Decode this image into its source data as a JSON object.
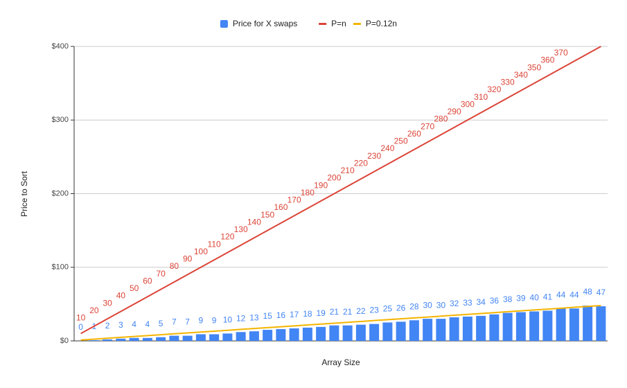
{
  "chart_data": {
    "type": "combo",
    "x_label": "Array Size",
    "y_label": "Price to Sort",
    "categories": [
      null,
      null,
      null,
      null,
      null,
      null,
      null,
      null,
      null,
      null,
      null,
      null,
      null,
      null,
      null,
      null,
      null,
      null,
      null,
      null,
      null,
      null,
      null,
      null,
      null,
      null,
      null,
      null,
      null,
      null,
      null,
      null,
      null,
      null,
      null,
      null,
      null,
      null,
      null,
      null
    ],
    "series": [
      {
        "name": "Price for X swaps",
        "kind": "bar",
        "color": "#4285f4",
        "values": [
          0,
          1,
          2,
          3,
          4,
          4,
          5,
          7,
          7,
          9,
          9,
          10,
          12,
          13,
          15,
          16,
          17,
          18,
          19,
          21,
          21,
          22,
          23,
          25,
          26,
          28,
          30,
          30,
          32,
          33,
          34,
          36,
          38,
          39,
          40,
          41,
          44,
          44,
          48,
          47
        ]
      },
      {
        "name": "P=n",
        "kind": "line",
        "color": "#db4437",
        "values": [
          10,
          20,
          30,
          40,
          50,
          60,
          70,
          80,
          90,
          100,
          110,
          120,
          130,
          140,
          150,
          160,
          170,
          180,
          190,
          200,
          210,
          220,
          230,
          240,
          250,
          260,
          270,
          280,
          290,
          300,
          310,
          320,
          330,
          340,
          350,
          360,
          370,
          380,
          390,
          400
        ],
        "value_labels": [
          "10",
          "20",
          "30",
          "40",
          "50",
          "60",
          "70",
          "80",
          "90",
          "100",
          "110",
          "120",
          "130",
          "140",
          "150",
          "160",
          "170",
          "180",
          "190",
          "200",
          "210",
          "220",
          "230",
          "240",
          "250",
          "260",
          "270",
          "280",
          "290",
          "300",
          "310",
          "320",
          "330",
          "340",
          "350",
          "360",
          "370",
          null,
          null,
          null
        ]
      },
      {
        "name": "P=0.12n",
        "kind": "line",
        "color": "#f4b400",
        "values": [
          1.2,
          2.4,
          3.6,
          4.8,
          6,
          7.2,
          8.4,
          9.6,
          10.8,
          12,
          13.2,
          14.4,
          15.6,
          16.8,
          18,
          19.2,
          20.4,
          21.6,
          22.8,
          24,
          25.2,
          26.4,
          27.6,
          28.8,
          30,
          31.2,
          32.4,
          33.6,
          34.8,
          36,
          37.2,
          38.4,
          39.6,
          40.8,
          42,
          43.2,
          44.4,
          45.6,
          46.8,
          48
        ]
      }
    ],
    "ylim": [
      0,
      400
    ],
    "yticks": [
      {
        "value": 0,
        "label": "$0"
      },
      {
        "value": 100,
        "label": "$100"
      },
      {
        "value": 200,
        "label": "$200"
      },
      {
        "value": 300,
        "label": "$300"
      },
      {
        "value": 400,
        "label": "$400"
      }
    ],
    "grid": true,
    "legend": "top"
  }
}
